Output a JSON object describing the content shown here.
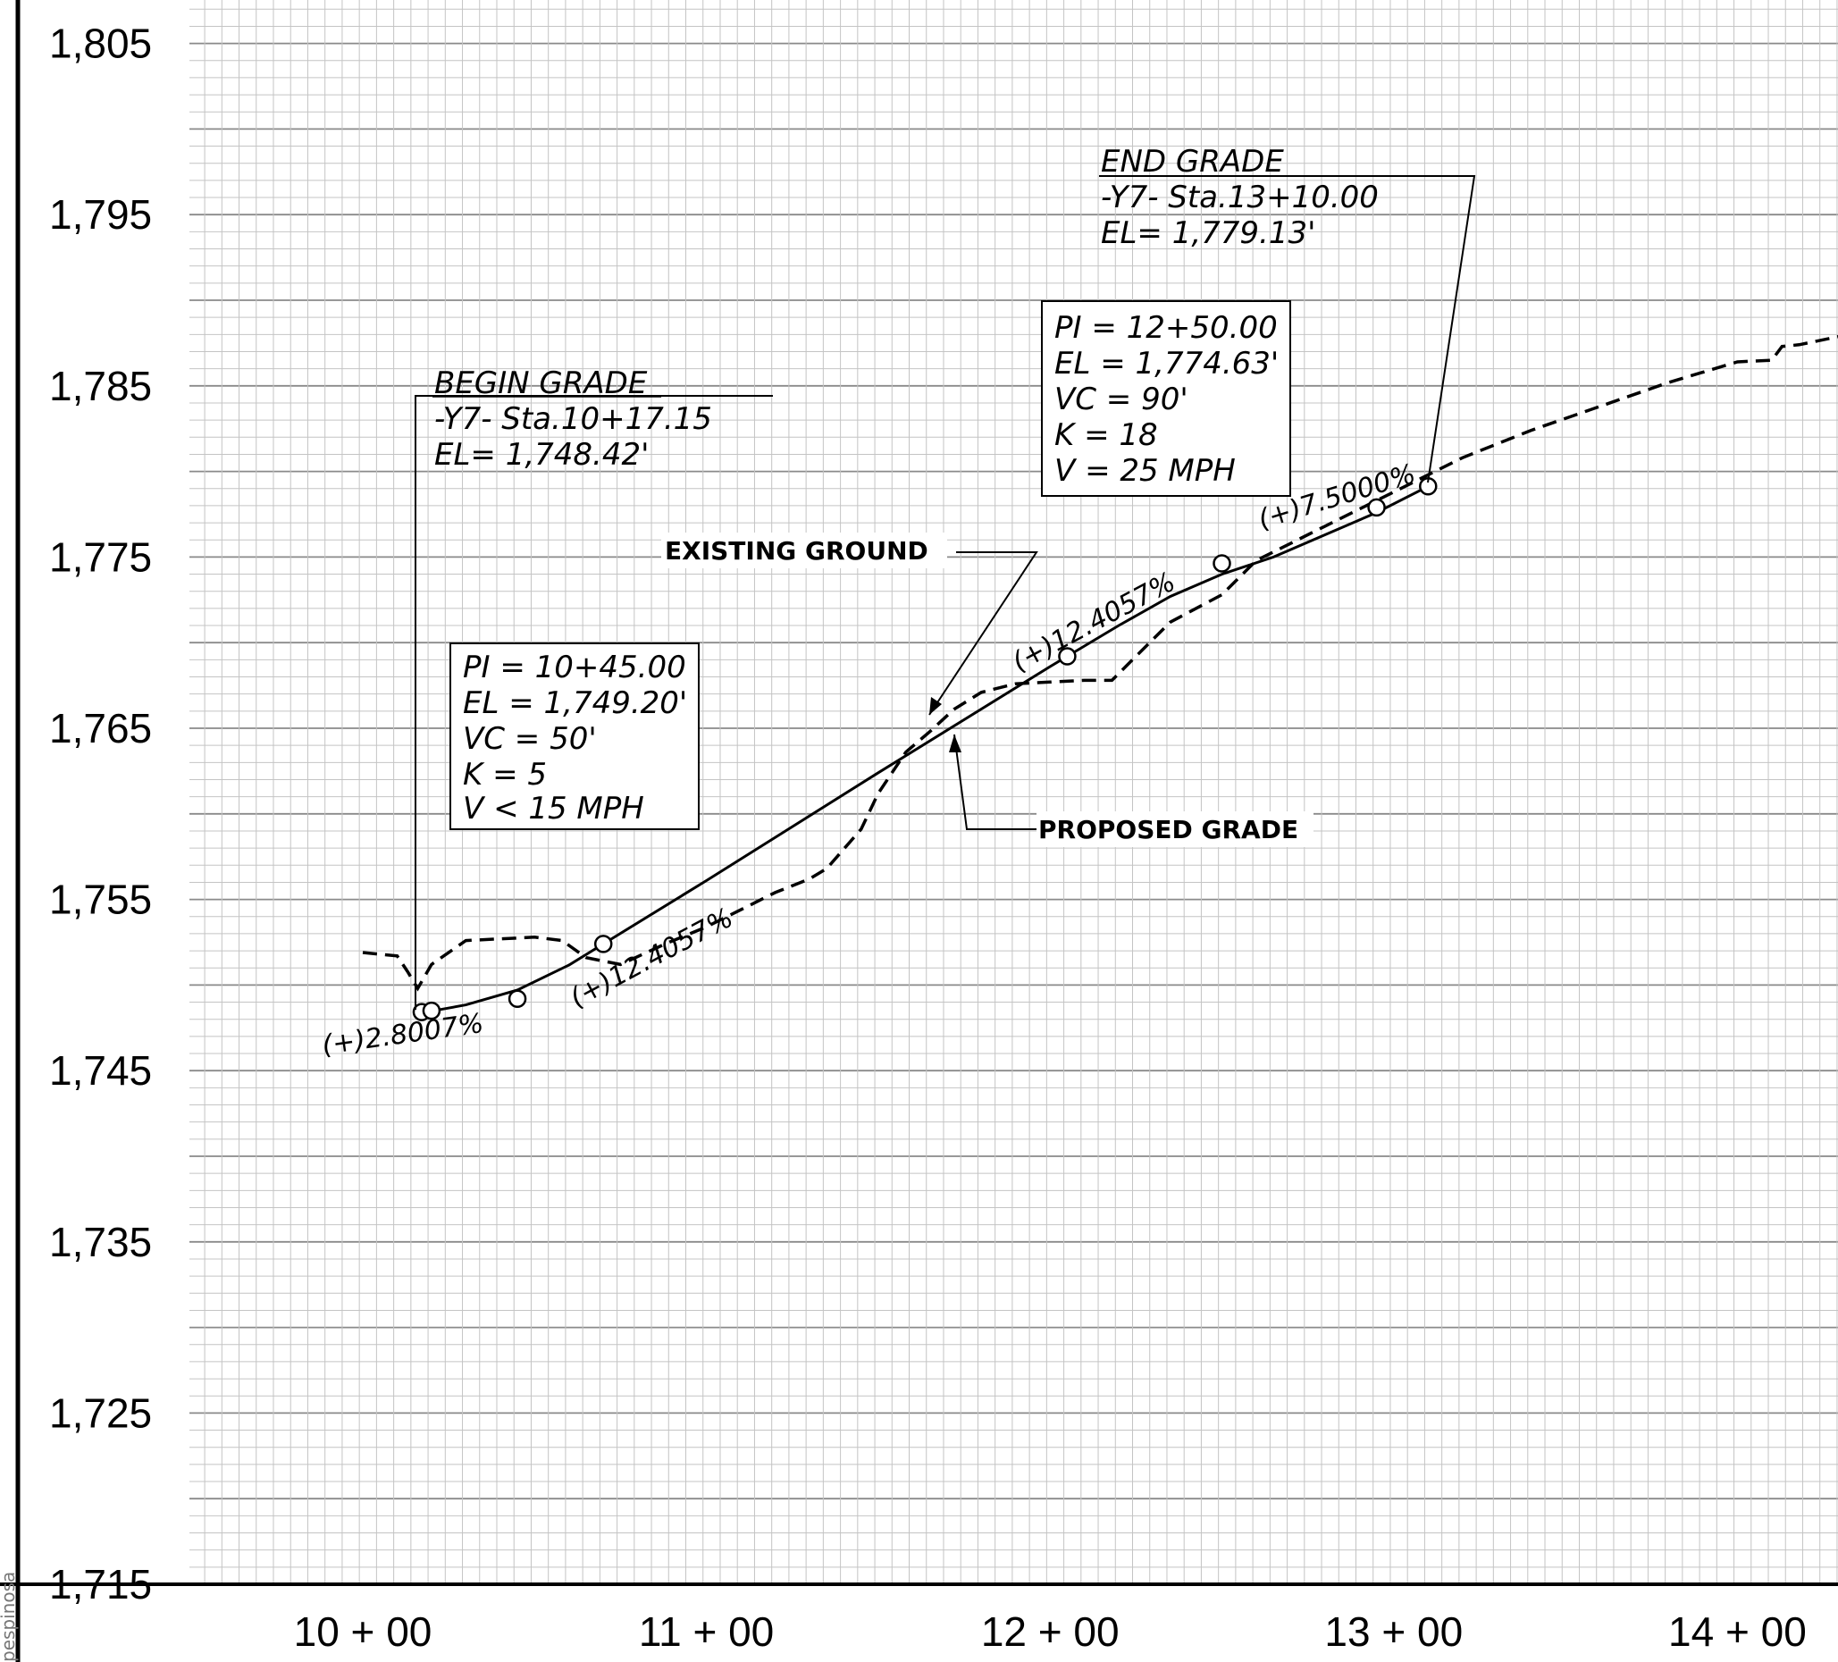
{
  "chart_data": {
    "type": "line",
    "title": "",
    "xlabel": "",
    "ylabel": "",
    "xlim": [
      944,
      1430
    ],
    "ylim": [
      1715,
      1810
    ],
    "y_ticks": [
      "1,805",
      "1,795",
      "1,785",
      "1,775",
      "1,765",
      "1,755",
      "1,745",
      "1,735",
      "1,725",
      "1,715"
    ],
    "y_tick_values": [
      1805,
      1795,
      1785,
      1775,
      1765,
      1755,
      1745,
      1735,
      1725,
      1715
    ],
    "x_ticks": [
      "10+00",
      "11+00",
      "12+00",
      "13+00",
      "14+00"
    ],
    "x_tick_values": [
      1000,
      1100,
      1200,
      1300,
      1400
    ],
    "grid": true,
    "series": [
      {
        "name": "EXISTING GROUND",
        "style": "dashed",
        "x": [
          1000,
          1010,
          1013,
          1016,
          1020,
          1030,
          1050,
          1058,
          1065,
          1075,
          1088,
          1100,
          1120,
          1130,
          1135,
          1145,
          1150,
          1158,
          1165,
          1172,
          1180,
          1190,
          1200,
          1210,
          1218,
          1225,
          1235,
          1250,
          1260,
          1280,
          1300,
          1320,
          1340,
          1360,
          1380,
          1400,
          1410,
          1413,
          1418,
          1430
        ],
        "y": [
          1751.9,
          1751.7,
          1750.8,
          1749.8,
          1751.2,
          1752.6,
          1752.8,
          1752.6,
          1751.6,
          1751.2,
          1752.4,
          1753.4,
          1755.4,
          1756.2,
          1756.8,
          1759.1,
          1761.2,
          1763.6,
          1764.8,
          1766.1,
          1767.1,
          1767.6,
          1767.7,
          1767.8,
          1767.8,
          1769.2,
          1771.2,
          1772.8,
          1774.8,
          1776.8,
          1778.8,
          1780.8,
          1782.4,
          1783.8,
          1785.2,
          1786.4,
          1786.5,
          1787.3,
          1787.4,
          1787.9
        ]
      },
      {
        "name": "PROPOSED GRADE",
        "style": "solid",
        "x": [
          1017.15,
          1022,
          1030,
          1045,
          1060,
          1070,
          1100,
          1150,
          1200,
          1205,
          1220,
          1235,
          1250,
          1265,
          1280,
          1295,
          1310
        ],
        "y": [
          1748.42,
          1748.55,
          1748.84,
          1749.71,
          1751.17,
          1752.4,
          1756.1,
          1762.4,
          1768.6,
          1769.2,
          1771.0,
          1772.7,
          1774.0,
          1775.0,
          1776.3,
          1777.6,
          1779.13
        ]
      }
    ],
    "points": [
      {
        "x": 1017.15,
        "y": 1748.42
      },
      {
        "x": 1020,
        "y": 1748.5
      },
      {
        "x": 1045,
        "y": 1749.2
      },
      {
        "x": 1070,
        "y": 1752.4
      },
      {
        "x": 1205,
        "y": 1769.2
      },
      {
        "x": 1250,
        "y": 1774.63
      },
      {
        "x": 1295,
        "y": 1777.9
      },
      {
        "x": 1310,
        "y": 1779.13
      }
    ],
    "annotations": {
      "begin_grade": {
        "title": "BEGIN GRADE",
        "line1": "-Y7-  Sta.10+17.15",
        "line2": "EL= 1,748.42'"
      },
      "end_grade": {
        "title": "END GRADE",
        "line1": "-Y7-  Sta.13+10.00",
        "line2": "EL= 1,779.13'"
      },
      "pi1": [
        "PI  =  10+45.00",
        "EL  =  1,749.20'",
        "VC  =  50'",
        "K  =  5",
        "V  <  15  MPH"
      ],
      "pi2": [
        "PI  =  12+50.00",
        "EL  =  1,774.63'",
        "VC  =  90'",
        "K  =  18",
        "V  =  25  MPH"
      ],
      "existing_ground_label": "EXISTING  GROUND",
      "proposed_grade_label": "PROPOSED  GRADE",
      "slopes": [
        "(+)2.8007%",
        "(+)12.4057%",
        "(+)12.4057%",
        "(+)7.5000%"
      ]
    },
    "margin_text": "pespinosa"
  }
}
